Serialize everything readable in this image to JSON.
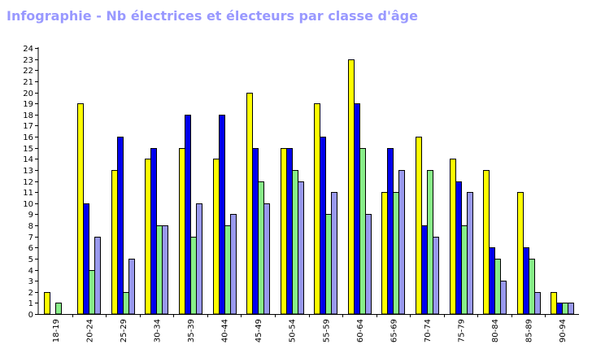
{
  "chart_data": {
    "type": "bar",
    "title": "Infographie - Nb électrices et électeurs par classe d'âge",
    "xlabel": "",
    "ylabel": "",
    "ylim": [
      0,
      24
    ],
    "yticks": [
      0,
      1,
      2,
      3,
      4,
      5,
      6,
      7,
      8,
      9,
      10,
      11,
      12,
      13,
      14,
      15,
      16,
      17,
      18,
      19,
      20,
      21,
      22,
      23,
      24
    ],
    "grid": false,
    "categories": [
      "18-19",
      "20-24",
      "25-29",
      "30-34",
      "35-39",
      "40-44",
      "45-49",
      "50-54",
      "55-59",
      "60-64",
      "65-69",
      "70-74",
      "75-79",
      "80-84",
      "85-89",
      "90-94"
    ],
    "series": [
      {
        "color": "#ffff00",
        "values": [
          2,
          19,
          13,
          14,
          15,
          14,
          20,
          15,
          19,
          23,
          11,
          16,
          14,
          13,
          11,
          2
        ]
      },
      {
        "color": "#0000ee",
        "values": [
          0,
          10,
          16,
          15,
          18,
          18,
          15,
          15,
          16,
          19,
          15,
          8,
          12,
          6,
          6,
          1
        ]
      },
      {
        "color": "#88ee88",
        "values": [
          1,
          4,
          2,
          8,
          7,
          8,
          12,
          13,
          9,
          15,
          11,
          13,
          8,
          5,
          5,
          1
        ]
      },
      {
        "color": "#9999ee",
        "values": [
          0,
          7,
          5,
          8,
          10,
          9,
          10,
          12,
          11,
          9,
          13,
          7,
          11,
          3,
          2,
          1
        ]
      }
    ]
  }
}
